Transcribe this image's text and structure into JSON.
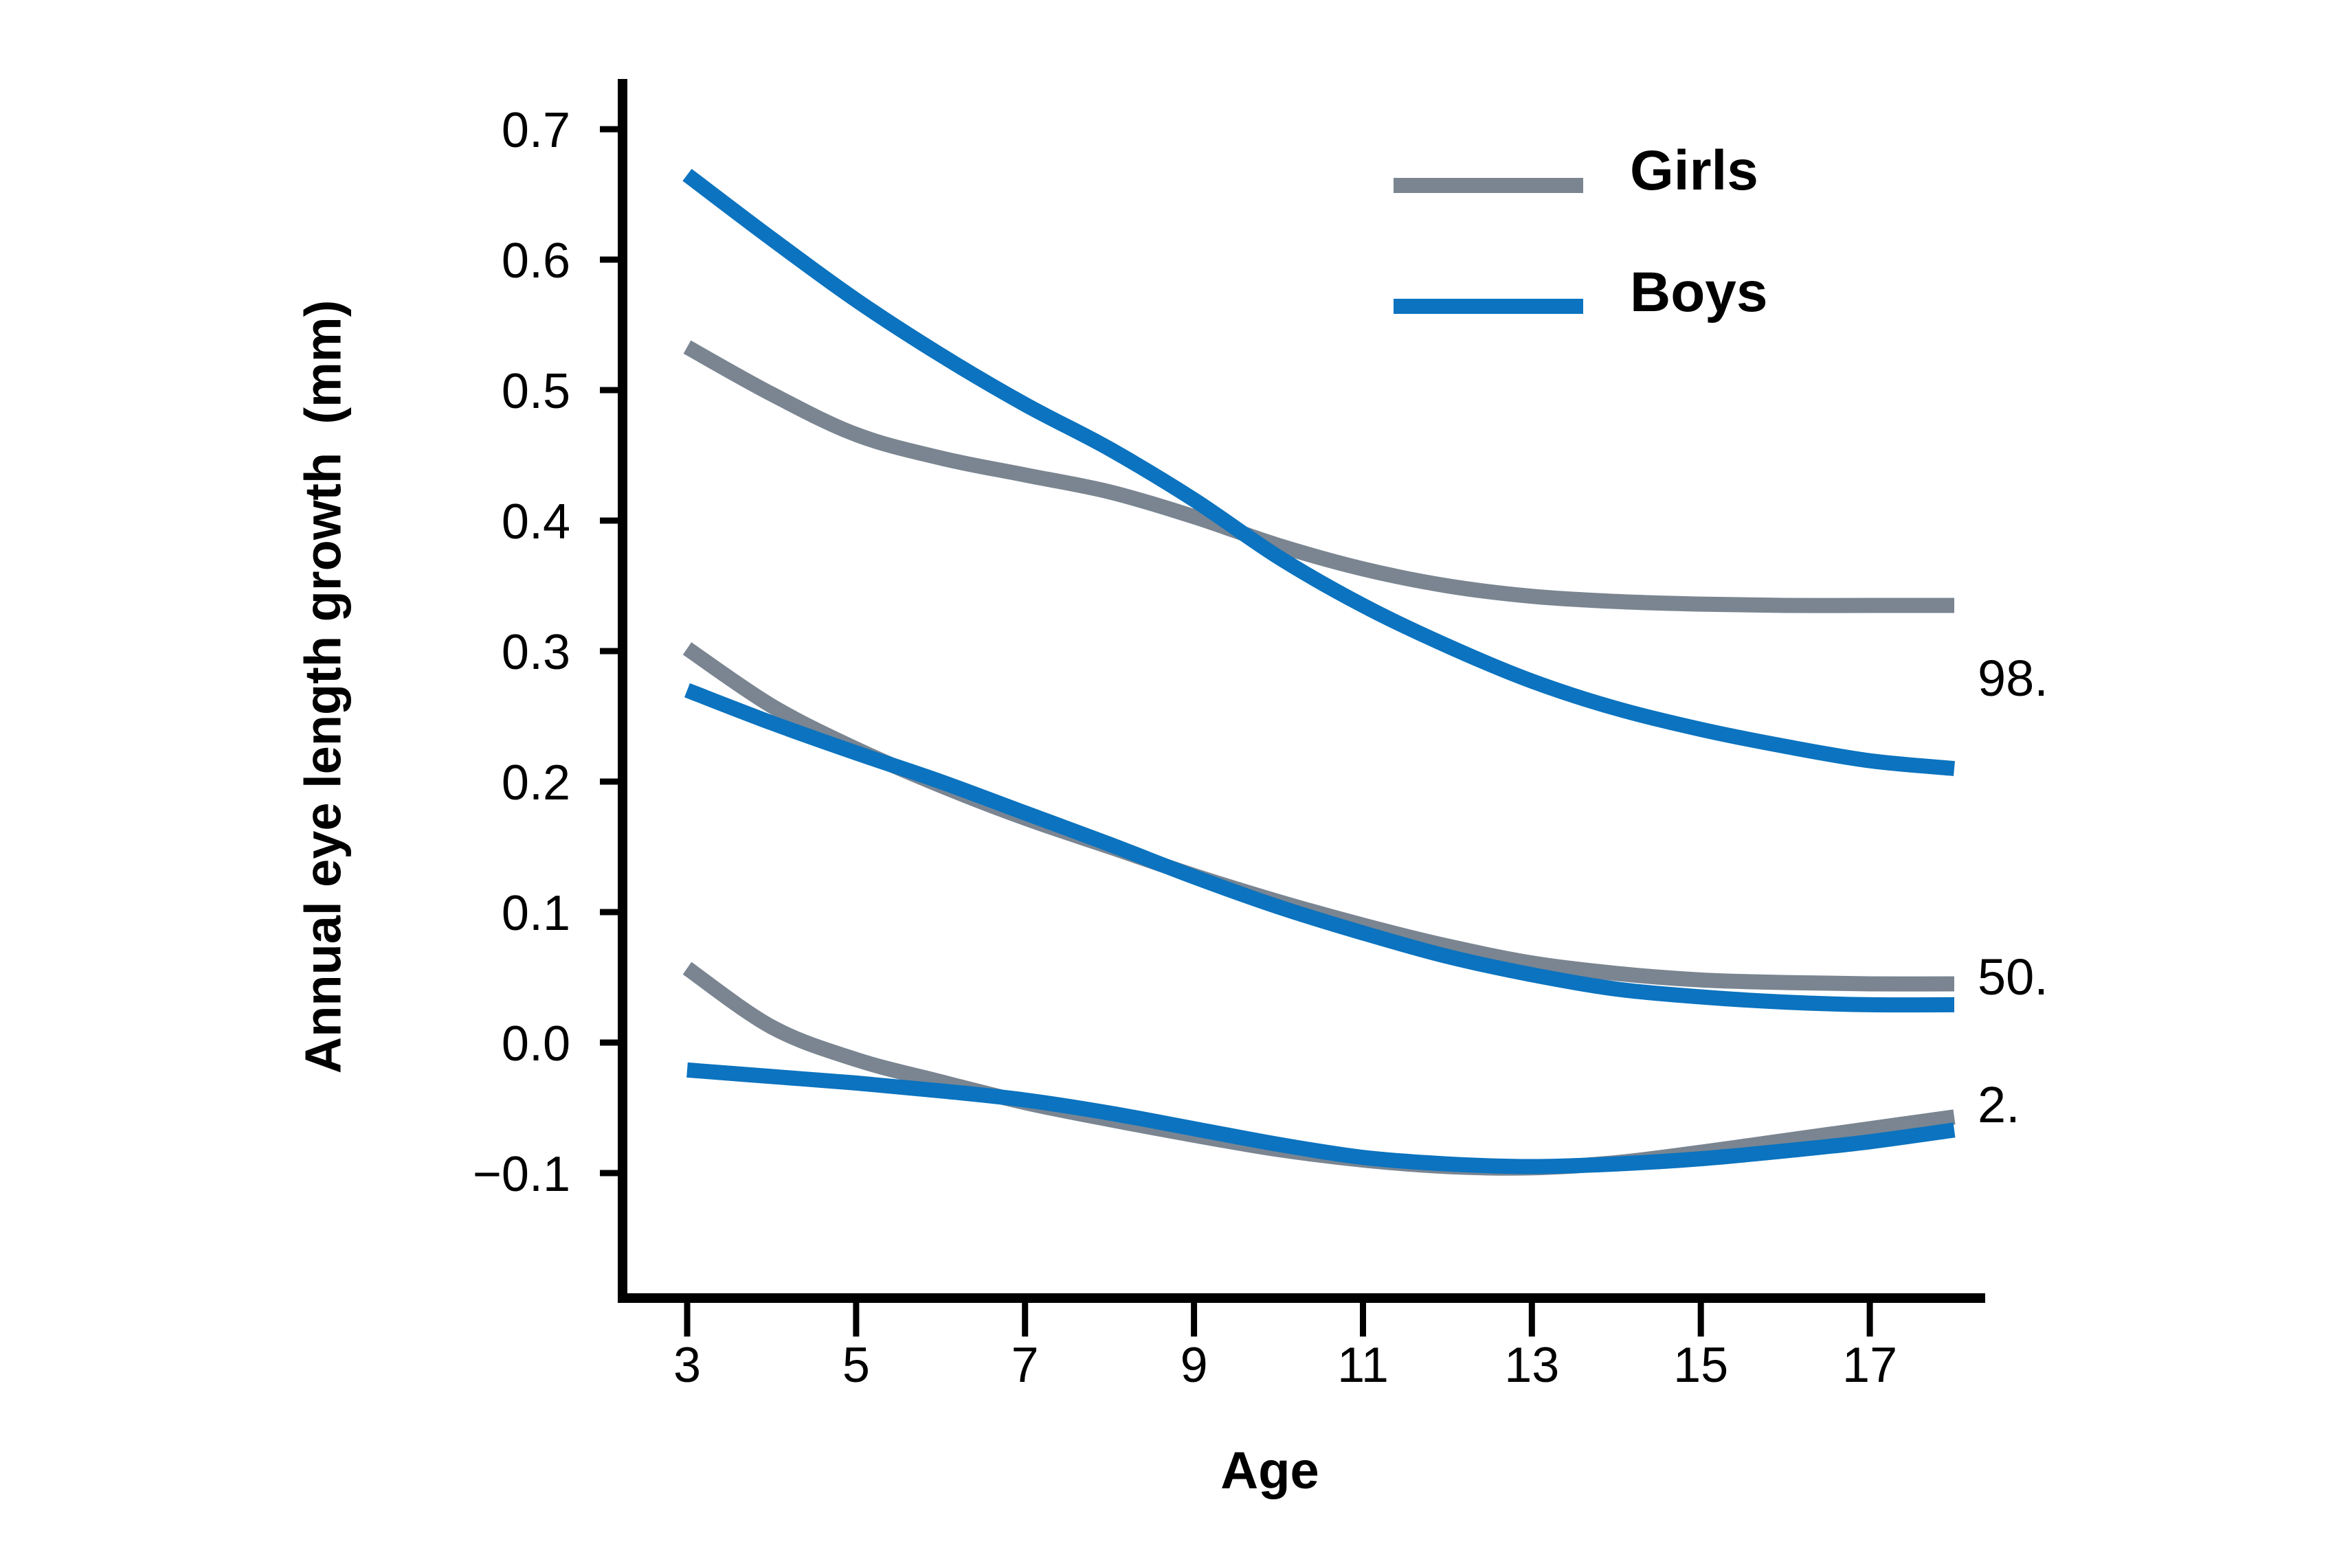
{
  "axes": {
    "x_label": "Age",
    "y_label": "Annual eye length growth  (mm)"
  },
  "legend": {
    "items": [
      {
        "label": "Girls",
        "color": "#7A8591"
      },
      {
        "label": "Boys",
        "color": "#0B73BF"
      }
    ]
  },
  "chart_data": {
    "type": "line",
    "title": "",
    "xlabel": "Age",
    "ylabel": "Annual eye length growth (mm)",
    "grid": false,
    "xlim": [
      2.2,
      18.4
    ],
    "ylim": [
      -0.2,
      0.74
    ],
    "x_ticks": [
      3,
      5,
      7,
      9,
      11,
      13,
      15,
      17
    ],
    "y_ticks": [
      0.7,
      0.6,
      0.5,
      0.4,
      0.3,
      0.2,
      0.1,
      0.0,
      -0.1
    ],
    "y_tick_labels": [
      "0.7",
      "0.6",
      "0.5",
      "0.4",
      "0.3",
      "0.2",
      "0.1",
      "0.0",
      "−0.1"
    ],
    "x": [
      3,
      4,
      5,
      6,
      7,
      8,
      9,
      10,
      11,
      12,
      13,
      14,
      15,
      16,
      17,
      18
    ],
    "series": [
      {
        "name": "Girls 98th percentile",
        "group": "Girls",
        "percentile": "98",
        "color": "#7A8591",
        "values": [
          0.533,
          0.497,
          0.466,
          0.448,
          0.435,
          0.422,
          0.403,
          0.381,
          0.363,
          0.35,
          0.342,
          0.338,
          0.336,
          0.335,
          0.335,
          0.335
        ]
      },
      {
        "name": "Boys 98th percentile",
        "group": "Boys",
        "percentile": "98",
        "color": "#0B73BF",
        "values": [
          0.665,
          0.616,
          0.569,
          0.527,
          0.489,
          0.455,
          0.416,
          0.372,
          0.335,
          0.304,
          0.277,
          0.256,
          0.24,
          0.227,
          0.216,
          0.21
        ]
      },
      {
        "name": "Girls 50th percentile",
        "group": "Girls",
        "percentile": "50",
        "color": "#7A8591",
        "values": [
          0.302,
          0.258,
          0.225,
          0.197,
          0.172,
          0.15,
          0.128,
          0.108,
          0.09,
          0.074,
          0.061,
          0.053,
          0.048,
          0.046,
          0.045,
          0.045
        ]
      },
      {
        "name": "Boys 50th percentile",
        "group": "Boys",
        "percentile": "50",
        "color": "#0B73BF",
        "values": [
          0.27,
          0.245,
          0.222,
          0.2,
          0.176,
          0.152,
          0.127,
          0.104,
          0.084,
          0.066,
          0.052,
          0.041,
          0.035,
          0.031,
          0.029,
          0.029
        ]
      },
      {
        "name": "Girls 2nd percentile",
        "group": "Girls",
        "percentile": "2",
        "color": "#7A8591",
        "values": [
          0.057,
          0.012,
          -0.013,
          -0.03,
          -0.046,
          -0.059,
          -0.071,
          -0.082,
          -0.09,
          -0.095,
          -0.096,
          -0.092,
          -0.084,
          -0.075,
          -0.066,
          -0.057
        ]
      },
      {
        "name": "Boys 2nd percentile",
        "group": "Boys",
        "percentile": "2",
        "color": "#0B73BF",
        "values": [
          -0.021,
          -0.026,
          -0.031,
          -0.037,
          -0.044,
          -0.054,
          -0.066,
          -0.078,
          -0.088,
          -0.093,
          -0.095,
          -0.093,
          -0.089,
          -0.083,
          -0.076,
          -0.067
        ]
      }
    ],
    "right_labels": [
      {
        "text": "98.",
        "y": 0.279
      },
      {
        "text": "50.",
        "y": 0.05
      },
      {
        "text": "2.",
        "y": -0.048
      }
    ],
    "legend_position": "upper right"
  }
}
